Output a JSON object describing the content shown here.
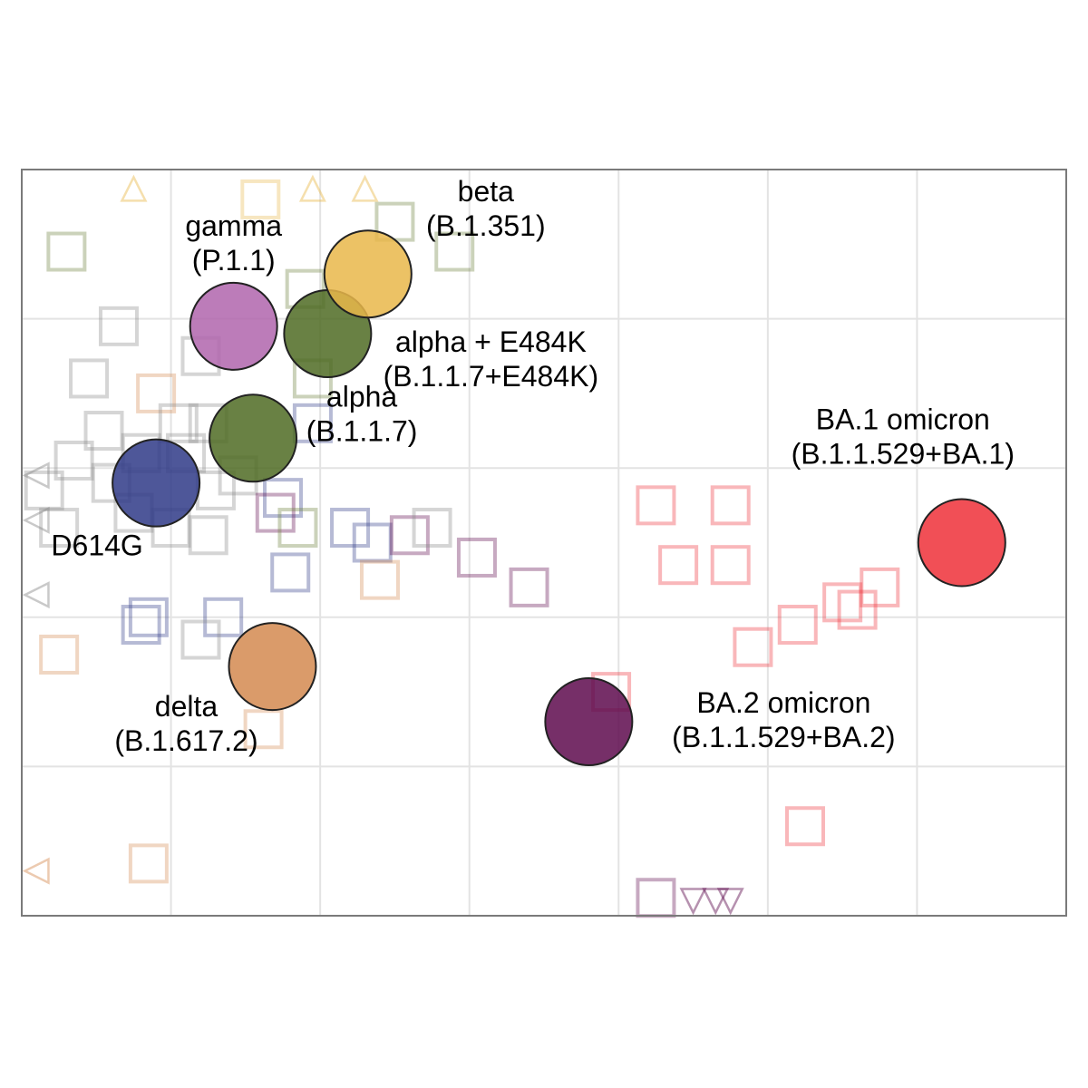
{
  "chart_data": {
    "type": "scatter",
    "title": "",
    "xlabel": "",
    "ylabel": "",
    "xlim": [
      0,
      7
    ],
    "ylim": [
      0,
      5
    ],
    "grid": true,
    "antigens": [
      {
        "name": "D614G",
        "label_lines": [
          "D614G"
        ],
        "x": 0.9,
        "y": 2.9,
        "color": "#2f3a87"
      },
      {
        "name": "alpha",
        "label_lines": [
          "alpha",
          "(B.1.1.7)"
        ],
        "x": 1.55,
        "y": 3.2,
        "color": "#4f6b23"
      },
      {
        "name": "alpha + E484K",
        "label_lines": [
          "alpha + E484K",
          "(B.1.1.7+E484K)"
        ],
        "x": 2.05,
        "y": 3.9,
        "color": "#4f6b23"
      },
      {
        "name": "gamma",
        "label_lines": [
          "gamma",
          "(P.1.1)"
        ],
        "x": 1.42,
        "y": 3.95,
        "color": "#b065ad"
      },
      {
        "name": "beta",
        "label_lines": [
          "beta",
          "(B.1.351)"
        ],
        "x": 2.32,
        "y": 4.3,
        "color": "#e9b74a"
      },
      {
        "name": "delta",
        "label_lines": [
          "delta",
          "(B.1.617.2)"
        ],
        "x": 1.68,
        "y": 1.67,
        "color": "#d48a50"
      },
      {
        "name": "BA.1 omicron",
        "label_lines": [
          "BA.1 omicron",
          "(B.1.1.529+BA.1)"
        ],
        "x": 6.3,
        "y": 2.5,
        "color": "#ef3038"
      },
      {
        "name": "BA.2 omicron",
        "label_lines": [
          "BA.2 omicron",
          "(B.1.1.529+BA.2)"
        ],
        "x": 3.8,
        "y": 1.3,
        "color": "#5e0a4e"
      }
    ],
    "sera": [
      {
        "x": 1.6,
        "y": 4.8,
        "color": "#e9b74a"
      },
      {
        "x": 2.5,
        "y": 4.65,
        "color": "#6a7d3a"
      },
      {
        "x": 2.9,
        "y": 4.45,
        "color": "#6a7d3a"
      },
      {
        "x": 0.3,
        "y": 4.45,
        "color": "#6a7d3a"
      },
      {
        "x": 1.9,
        "y": 4.2,
        "color": "#6a7d3a"
      },
      {
        "x": 0.65,
        "y": 3.95,
        "color": "#888888"
      },
      {
        "x": 1.2,
        "y": 3.75,
        "color": "#888888"
      },
      {
        "x": 0.45,
        "y": 3.6,
        "color": "#888888"
      },
      {
        "x": 1.95,
        "y": 3.6,
        "color": "#6a7d3a"
      },
      {
        "x": 0.9,
        "y": 3.5,
        "color": "#d48a50"
      },
      {
        "x": 1.05,
        "y": 3.3,
        "color": "#888888"
      },
      {
        "x": 1.25,
        "y": 3.3,
        "color": "#888888"
      },
      {
        "x": 0.55,
        "y": 3.25,
        "color": "#888888"
      },
      {
        "x": 0.8,
        "y": 3.1,
        "color": "#888888"
      },
      {
        "x": 1.1,
        "y": 3.1,
        "color": "#888888"
      },
      {
        "x": 0.35,
        "y": 3.05,
        "color": "#888888"
      },
      {
        "x": 0.6,
        "y": 2.9,
        "color": "#888888"
      },
      {
        "x": 1.3,
        "y": 2.85,
        "color": "#888888"
      },
      {
        "x": 0.15,
        "y": 2.85,
        "color": "#888888"
      },
      {
        "x": 1.45,
        "y": 2.95,
        "color": "#888888"
      },
      {
        "x": 0.75,
        "y": 2.7,
        "color": "#888888"
      },
      {
        "x": 1.0,
        "y": 2.6,
        "color": "#888888"
      },
      {
        "x": 0.25,
        "y": 2.6,
        "color": "#888888"
      },
      {
        "x": 1.25,
        "y": 2.55,
        "color": "#888888"
      },
      {
        "x": 1.75,
        "y": 2.8,
        "color": "#2f3a87"
      },
      {
        "x": 1.7,
        "y": 2.7,
        "color": "#5e0a4e"
      },
      {
        "x": 1.85,
        "y": 2.6,
        "color": "#6a7d3a"
      },
      {
        "x": 1.95,
        "y": 3.3,
        "color": "#2f3a87"
      },
      {
        "x": 2.2,
        "y": 2.6,
        "color": "#2f3a87"
      },
      {
        "x": 2.35,
        "y": 2.5,
        "color": "#2f3a87"
      },
      {
        "x": 2.6,
        "y": 2.55,
        "color": "#5e0a4e"
      },
      {
        "x": 2.75,
        "y": 2.6,
        "color": "#888888"
      },
      {
        "x": 1.8,
        "y": 2.3,
        "color": "#2f3a87"
      },
      {
        "x": 2.4,
        "y": 2.25,
        "color": "#d48a50"
      },
      {
        "x": 3.05,
        "y": 2.4,
        "color": "#5e0a4e"
      },
      {
        "x": 3.4,
        "y": 2.2,
        "color": "#5e0a4e"
      },
      {
        "x": 0.85,
        "y": 2.0,
        "color": "#2f3a87"
      },
      {
        "x": 0.8,
        "y": 1.95,
        "color": "#2f3a87"
      },
      {
        "x": 1.35,
        "y": 2.0,
        "color": "#2f3a87"
      },
      {
        "x": 1.2,
        "y": 1.85,
        "color": "#888888"
      },
      {
        "x": 0.25,
        "y": 1.75,
        "color": "#d48a50"
      },
      {
        "x": 1.62,
        "y": 1.25,
        "color": "#d48a50"
      },
      {
        "x": 0.85,
        "y": 0.35,
        "color": "#d48a50"
      },
      {
        "x": 4.25,
        "y": 2.75,
        "color": "#ef3038"
      },
      {
        "x": 4.75,
        "y": 2.75,
        "color": "#ef3038"
      },
      {
        "x": 4.4,
        "y": 2.35,
        "color": "#ef3038"
      },
      {
        "x": 4.75,
        "y": 2.35,
        "color": "#ef3038"
      },
      {
        "x": 5.75,
        "y": 2.2,
        "color": "#ef3038"
      },
      {
        "x": 5.5,
        "y": 2.1,
        "color": "#ef3038"
      },
      {
        "x": 5.6,
        "y": 2.05,
        "color": "#ef3038"
      },
      {
        "x": 5.2,
        "y": 1.95,
        "color": "#ef3038"
      },
      {
        "x": 4.9,
        "y": 1.8,
        "color": "#ef3038"
      },
      {
        "x": 3.95,
        "y": 1.5,
        "color": "#ef3038"
      },
      {
        "x": 5.25,
        "y": 0.6,
        "color": "#ef3038"
      },
      {
        "x": 4.25,
        "y": 0.12,
        "color": "#5e0a4e"
      }
    ],
    "offscale_markers": [
      {
        "x": 0.75,
        "y": 4.87,
        "dir": "up",
        "color": "#e9b74a"
      },
      {
        "x": 1.95,
        "y": 4.87,
        "dir": "up",
        "color": "#e9b74a"
      },
      {
        "x": 2.3,
        "y": 4.87,
        "dir": "up",
        "color": "#e9b74a"
      },
      {
        "x": 0.1,
        "y": 2.95,
        "dir": "left",
        "color": "#888888"
      },
      {
        "x": 0.1,
        "y": 2.65,
        "dir": "left",
        "color": "#888888"
      },
      {
        "x": 0.1,
        "y": 2.15,
        "dir": "left",
        "color": "#888888"
      },
      {
        "x": 0.1,
        "y": 0.3,
        "dir": "left",
        "color": "#d48a50"
      },
      {
        "x": 4.5,
        "y": 0.1,
        "dir": "down",
        "color": "#5e0a4e"
      },
      {
        "x": 4.65,
        "y": 0.1,
        "dir": "down",
        "color": "#5e0a4e"
      },
      {
        "x": 4.75,
        "y": 0.1,
        "dir": "down",
        "color": "#5e0a4e"
      }
    ]
  }
}
